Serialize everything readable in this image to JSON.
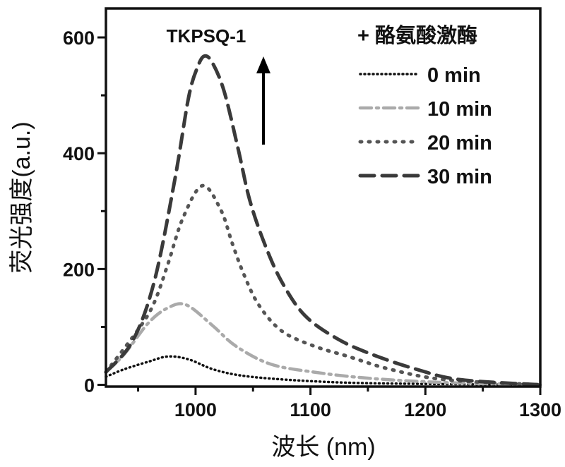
{
  "chart_data": {
    "type": "line",
    "title": "TKPSQ-1",
    "xlabel": "波长 (nm)",
    "ylabel": "荧光强度(a.u.)",
    "xlim": [
      922,
      1300
    ],
    "ylim": [
      -3,
      650
    ],
    "xticks": [
      1000,
      1100,
      1200,
      1300
    ],
    "xtick_labels": [
      "1000",
      "1100",
      "1200",
      "1300"
    ],
    "yticks": [
      0,
      200,
      400,
      600
    ],
    "ytick_labels": [
      "0",
      "200",
      "400",
      "600"
    ],
    "grid": false,
    "legend_title": "+ 酪氨酸激酶",
    "legend_placement": "top-right",
    "annotation": "arrow-up (increasing intensity)",
    "series": [
      {
        "name": "0 min",
        "color": "#111111",
        "dash": "1 5",
        "x": [
          922,
          938,
          959,
          976,
          994,
          1015,
          1040,
          1078,
          1128,
          1180,
          1240,
          1300
        ],
        "y": [
          14,
          27,
          40,
          49,
          44,
          27,
          16,
          9,
          4,
          2,
          1,
          0
        ]
      },
      {
        "name": "10 min",
        "color": "#aaaaaa",
        "dash": "16 7 3 7",
        "x": [
          922,
          938,
          959,
          976,
          992,
          1015,
          1035,
          1065,
          1103,
          1153,
          1217,
          1300
        ],
        "y": [
          22,
          53,
          107,
          133,
          138,
          102,
          67,
          36,
          22,
          11,
          4,
          0
        ]
      },
      {
        "name": "20 min",
        "color": "#555555",
        "dash": "2 10",
        "x": [
          922,
          951,
          964,
          976,
          989,
          1006,
          1022,
          1032,
          1042,
          1055,
          1075,
          1103,
          1133,
          1169,
          1217,
          1300
        ],
        "y": [
          22,
          98,
          142,
          209,
          288,
          344,
          302,
          244,
          191,
          138,
          93,
          67,
          49,
          27,
          9,
          0
        ]
      },
      {
        "name": "30 min",
        "color": "#3a3a3a",
        "dash": "20 11",
        "x": [
          922,
          945,
          964,
          982,
          994,
          1002,
          1008,
          1015,
          1025,
          1037,
          1047,
          1060,
          1075,
          1095,
          1123,
          1153,
          1192,
          1230,
          1300
        ],
        "y": [
          22,
          75,
          178,
          355,
          497,
          550,
          568,
          555,
          506,
          408,
          320,
          244,
          178,
          120,
          80,
          53,
          27,
          9,
          0
        ]
      }
    ]
  }
}
